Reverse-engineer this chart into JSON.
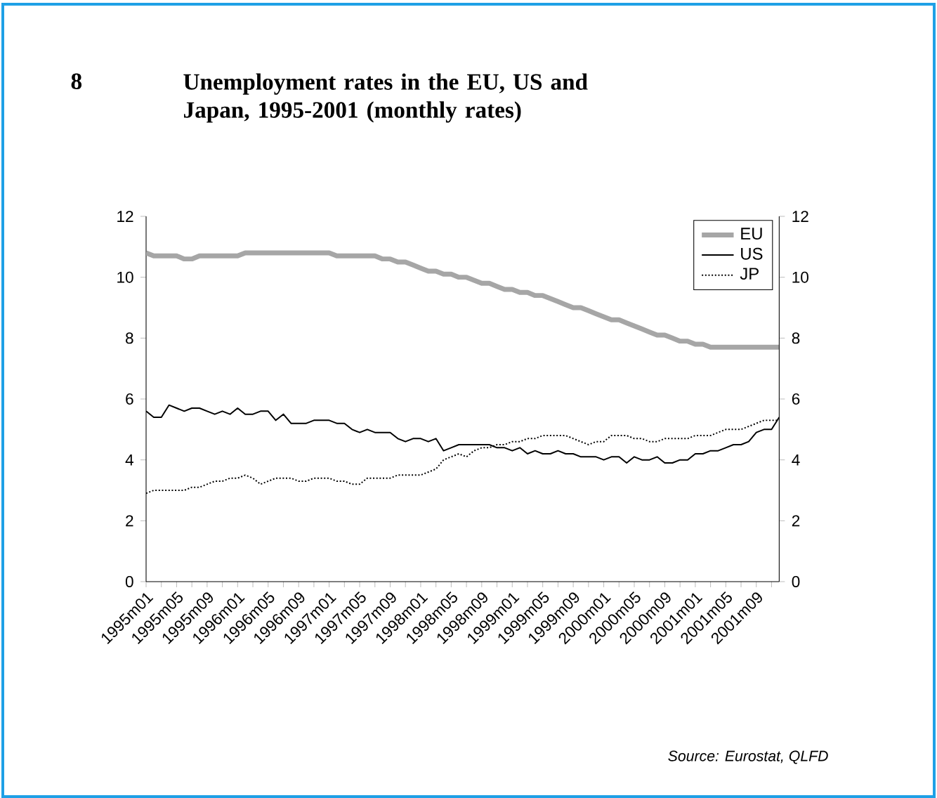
{
  "chart_data": {
    "type": "line",
    "title": "Unemployment rates in the EU, US and Japan, 1995-2001 (monthly rates)",
    "annotations": [
      "8",
      "Source: Eurostat, QLFD"
    ],
    "categories": [
      "1995m01",
      null,
      null,
      null,
      "1995m05",
      null,
      null,
      null,
      "1995m09",
      null,
      null,
      null,
      "1996m01",
      null,
      null,
      null,
      "1996m05",
      null,
      null,
      null,
      "1996m09",
      null,
      null,
      null,
      "1997m01",
      null,
      null,
      null,
      "1997m05",
      null,
      null,
      null,
      "1997m09",
      null,
      null,
      null,
      "1998m01",
      null,
      null,
      null,
      "1998m05",
      null,
      null,
      null,
      "1998m09",
      null,
      null,
      null,
      "1999m01",
      null,
      null,
      null,
      "1999m05",
      null,
      null,
      null,
      "1999m09",
      null,
      null,
      null,
      "2000m01",
      null,
      null,
      null,
      "2000m05",
      null,
      null,
      null,
      "2000m09",
      null,
      null,
      null,
      "2001m01",
      null,
      null,
      null,
      "2001m05",
      null,
      null,
      null,
      "2001m09",
      null,
      null,
      null
    ],
    "series": [
      {
        "name": "EU",
        "color": "#a6a6a6",
        "line_style": "solid",
        "values": [
          10.8,
          10.7,
          10.7,
          10.7,
          10.7,
          10.6,
          10.6,
          10.7,
          10.7,
          10.7,
          10.7,
          10.7,
          10.7,
          10.8,
          10.8,
          10.8,
          10.8,
          10.8,
          10.8,
          10.8,
          10.8,
          10.8,
          10.8,
          10.8,
          10.8,
          10.7,
          10.7,
          10.7,
          10.7,
          10.7,
          10.7,
          10.6,
          10.6,
          10.5,
          10.5,
          10.4,
          10.3,
          10.2,
          10.2,
          10.1,
          10.1,
          10.0,
          10.0,
          9.9,
          9.8,
          9.8,
          9.7,
          9.6,
          9.6,
          9.5,
          9.5,
          9.4,
          9.4,
          9.3,
          9.2,
          9.1,
          9.0,
          9.0,
          8.9,
          8.8,
          8.7,
          8.6,
          8.6,
          8.5,
          8.4,
          8.3,
          8.2,
          8.1,
          8.1,
          8.0,
          7.9,
          7.9,
          7.8,
          7.8,
          7.7,
          7.7,
          7.7,
          7.7,
          7.7,
          7.7,
          7.7,
          7.7,
          7.7,
          7.7
        ]
      },
      {
        "name": "US",
        "color": "#000000",
        "line_style": "solid",
        "values": [
          5.6,
          5.4,
          5.4,
          5.8,
          5.7,
          5.6,
          5.7,
          5.7,
          5.6,
          5.5,
          5.6,
          5.5,
          5.7,
          5.5,
          5.5,
          5.6,
          5.6,
          5.3,
          5.5,
          5.2,
          5.2,
          5.2,
          5.3,
          5.3,
          5.3,
          5.2,
          5.2,
          5.0,
          4.9,
          5.0,
          4.9,
          4.9,
          4.9,
          4.7,
          4.6,
          4.7,
          4.7,
          4.6,
          4.7,
          4.3,
          4.4,
          4.5,
          4.5,
          4.5,
          4.5,
          4.5,
          4.4,
          4.4,
          4.3,
          4.4,
          4.2,
          4.3,
          4.2,
          4.2,
          4.3,
          4.2,
          4.2,
          4.1,
          4.1,
          4.1,
          4.0,
          4.1,
          4.1,
          3.9,
          4.1,
          4.0,
          4.0,
          4.1,
          3.9,
          3.9,
          4.0,
          4.0,
          4.2,
          4.2,
          4.3,
          4.3,
          4.4,
          4.5,
          4.5,
          4.6,
          4.9,
          5.0,
          5.0,
          5.4
        ]
      },
      {
        "name": "JP",
        "color": "#000000",
        "line_style": "dotted",
        "values": [
          2.9,
          3.0,
          3.0,
          3.0,
          3.0,
          3.0,
          3.1,
          3.1,
          3.2,
          3.3,
          3.3,
          3.4,
          3.4,
          3.5,
          3.4,
          3.2,
          3.3,
          3.4,
          3.4,
          3.4,
          3.3,
          3.3,
          3.4,
          3.4,
          3.4,
          3.3,
          3.3,
          3.2,
          3.2,
          3.4,
          3.4,
          3.4,
          3.4,
          3.5,
          3.5,
          3.5,
          3.5,
          3.6,
          3.7,
          4.0,
          4.1,
          4.2,
          4.1,
          4.3,
          4.4,
          4.4,
          4.5,
          4.5,
          4.6,
          4.6,
          4.7,
          4.7,
          4.8,
          4.8,
          4.8,
          4.8,
          4.7,
          4.6,
          4.5,
          4.6,
          4.6,
          4.8,
          4.8,
          4.8,
          4.7,
          4.7,
          4.6,
          4.6,
          4.7,
          4.7,
          4.7,
          4.7,
          4.8,
          4.8,
          4.8,
          4.9,
          5.0,
          5.0,
          5.0,
          5.1,
          5.2,
          5.3,
          5.3,
          5.3
        ]
      }
    ],
    "ylim": [
      0,
      12
    ],
    "yticks": [
      0,
      2,
      4,
      6,
      8,
      10,
      12
    ],
    "y2lim": [
      0,
      12
    ],
    "y2ticks": [
      0,
      2,
      4,
      6,
      8,
      10,
      12
    ],
    "grid": false,
    "legend": "top right",
    "marker": "none"
  }
}
